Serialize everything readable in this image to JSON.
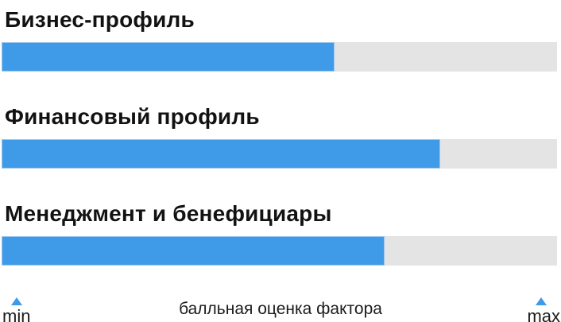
{
  "chart_data": {
    "type": "bar",
    "orientation": "horizontal",
    "categories": [
      "Бизнес-профиль",
      "Финансовый профиль",
      "Менеджмент и бенефициары"
    ],
    "series": [
      {
        "name": "балльная оценка фактора",
        "values_pct_of_scale": [
          60,
          79,
          69
        ]
      }
    ],
    "xlabel": "балльная оценка фактора",
    "x_range_labels": {
      "min": "min",
      "max": "max"
    },
    "legend": "none",
    "grid": "off",
    "colors": {
      "bar_fill": "#3f9ae8",
      "bar_fill_edge": "#9dc6ef",
      "bar_track": "#e4e4e4",
      "text": "#121212"
    }
  },
  "footer": {
    "min_label": "min",
    "max_label": "max",
    "axis_label": "балльная оценка фактора"
  }
}
